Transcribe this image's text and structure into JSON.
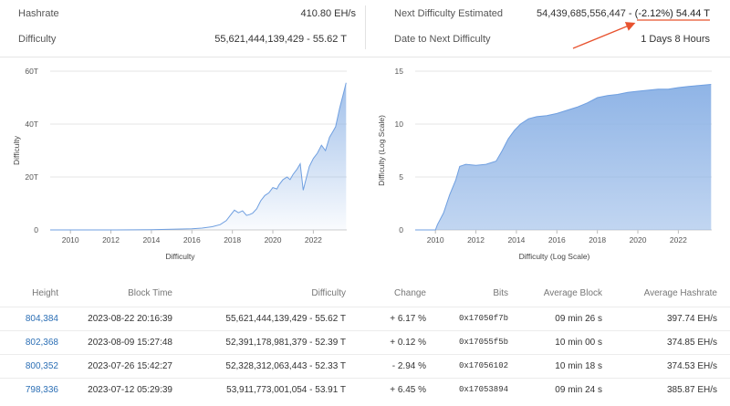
{
  "stats": {
    "hashrate_label": "Hashrate",
    "hashrate_value": "410.80 EH/s",
    "difficulty_label": "Difficulty",
    "difficulty_value": "55,621,444,139,429 - 55.62 T",
    "next_label": "Next Difficulty Estimated",
    "next_value_main": "54,439,685,556,447 - ",
    "next_value_highlight": "(-2.12%) 54.44 T",
    "date_next_label": "Date to Next Difficulty",
    "date_next_value": "1 Days 8 Hours"
  },
  "colors": {
    "accent": "#e8532f",
    "area_fill": "#8fb4e6",
    "area_stroke": "#6f9fe0",
    "link": "#2c6fb5",
    "positive": "#1e9e3a",
    "negative": "#d62b2b"
  },
  "chart_data": [
    {
      "type": "area",
      "title": "",
      "xlabel": "Difficulty",
      "ylabel": "Difficulty",
      "ylim": [
        0,
        60
      ],
      "y_unit": "T",
      "y_ticks": [
        "0",
        "20T",
        "40T",
        "60T"
      ],
      "x_ticks": [
        "2010",
        "2012",
        "2014",
        "2016",
        "2018",
        "2020",
        "2022"
      ],
      "xlim": [
        2009.0,
        2023.65
      ],
      "grid": true,
      "series": [
        {
          "x": [
            2009.0,
            2012.0,
            2014.0,
            2016.0,
            2016.5,
            2017.0,
            2017.4,
            2017.7,
            2017.9,
            2018.1,
            2018.3,
            2018.5,
            2018.7,
            2018.85,
            2019.0,
            2019.2,
            2019.4,
            2019.6,
            2019.8,
            2020.0,
            2020.2,
            2020.3,
            2020.5,
            2020.7,
            2020.85,
            2021.0,
            2021.2,
            2021.35,
            2021.5,
            2021.6,
            2021.8,
            2022.0,
            2022.2,
            2022.4,
            2022.6,
            2022.8,
            2022.95,
            2023.1,
            2023.3,
            2023.5,
            2023.62
          ],
          "y": [
            0,
            0.01,
            0.1,
            0.4,
            0.7,
            1.2,
            2.0,
            3.5,
            5.5,
            7.5,
            6.5,
            7.2,
            5.5,
            5.8,
            6.3,
            8.0,
            11.0,
            13.0,
            14.0,
            16.0,
            15.5,
            17.0,
            19.0,
            20.0,
            19.0,
            21.0,
            23.0,
            25.0,
            15.0,
            18.0,
            24.0,
            27.0,
            29.0,
            32.0,
            30.0,
            35.0,
            37.0,
            39.0,
            46.0,
            52.0,
            55.6
          ]
        }
      ]
    },
    {
      "type": "area",
      "title": "",
      "xlabel": "Difficulty (Log Scale)",
      "ylabel": "Difficulty (Log Scale)",
      "ylim": [
        0,
        15
      ],
      "y_ticks": [
        "0",
        "5",
        "10",
        "15"
      ],
      "x_ticks": [
        "2010",
        "2012",
        "2014",
        "2016",
        "2018",
        "2020",
        "2022"
      ],
      "xlim": [
        2009.0,
        2023.65
      ],
      "grid": true,
      "series": [
        {
          "x": [
            2009.0,
            2010.0,
            2010.1,
            2010.4,
            2010.7,
            2011.0,
            2011.2,
            2011.5,
            2012.0,
            2012.5,
            2013.0,
            2013.3,
            2013.6,
            2013.9,
            2014.2,
            2014.6,
            2015.0,
            2015.5,
            2016.0,
            2016.5,
            2017.0,
            2017.5,
            2018.0,
            2018.5,
            2019.0,
            2019.5,
            2020.0,
            2020.5,
            2021.0,
            2021.5,
            2022.0,
            2022.5,
            2023.0,
            2023.62
          ],
          "y": [
            0,
            0,
            0.5,
            1.6,
            3.3,
            4.7,
            6.0,
            6.2,
            6.1,
            6.2,
            6.5,
            7.5,
            8.6,
            9.4,
            10.0,
            10.5,
            10.7,
            10.8,
            11.0,
            11.3,
            11.6,
            12.0,
            12.5,
            12.7,
            12.8,
            13.0,
            13.1,
            13.2,
            13.3,
            13.3,
            13.45,
            13.55,
            13.65,
            13.75
          ]
        }
      ]
    }
  ],
  "table": {
    "headers": {
      "height": "Height",
      "block_time": "Block Time",
      "difficulty": "Difficulty",
      "change": "Change",
      "bits": "Bits",
      "avg_block": "Average Block",
      "avg_hashrate": "Average Hashrate"
    },
    "rows": [
      {
        "height": "804,384",
        "block_time": "2023-08-22 20:16:39",
        "difficulty": "55,621,444,139,429 - 55.62 T",
        "change": "+ 6.17 %",
        "change_dir": "pos",
        "bits": "0x17050f7b",
        "avg_block": "09 min 26 s",
        "avg_hashrate": "397.74 EH/s"
      },
      {
        "height": "802,368",
        "block_time": "2023-08-09 15:27:48",
        "difficulty": "52,391,178,981,379 - 52.39 T",
        "change": "+ 0.12 %",
        "change_dir": "pos",
        "bits": "0x17055f5b",
        "avg_block": "10 min 00 s",
        "avg_hashrate": "374.85 EH/s"
      },
      {
        "height": "800,352",
        "block_time": "2023-07-26 15:42:27",
        "difficulty": "52,328,312,063,443 - 52.33 T",
        "change": "- 2.94 %",
        "change_dir": "neg",
        "bits": "0x17056102",
        "avg_block": "10 min 18 s",
        "avg_hashrate": "374.53 EH/s"
      },
      {
        "height": "798,336",
        "block_time": "2023-07-12 05:29:39",
        "difficulty": "53,911,773,001,054 - 53.91 T",
        "change": "+ 6.45 %",
        "change_dir": "pos",
        "bits": "0x17053894",
        "avg_block": "09 min 24 s",
        "avg_hashrate": "385.87 EH/s"
      }
    ]
  }
}
